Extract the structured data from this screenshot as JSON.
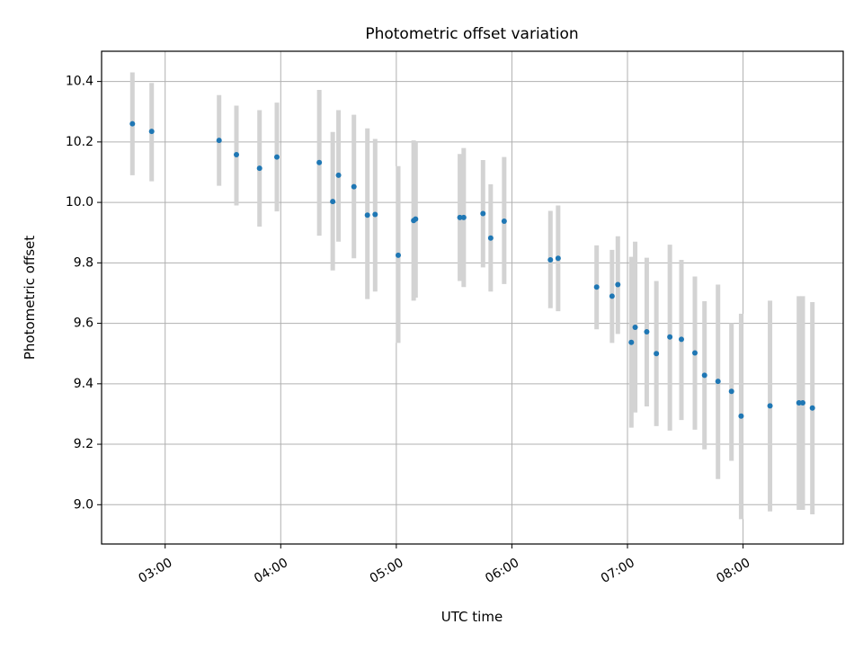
{
  "chart_data": {
    "type": "scatter",
    "title": "Photometric offset variation",
    "xlabel": "UTC time",
    "ylabel": "Photometric offset",
    "x_is_time": true,
    "x_range": [
      "02:27",
      "08:52"
    ],
    "ylim": [
      8.87,
      10.5
    ],
    "grid": true,
    "x_ticks": [
      "03:00",
      "04:00",
      "05:00",
      "06:00",
      "07:00",
      "08:00"
    ],
    "y_ticks": [
      9.0,
      9.2,
      9.4,
      9.6,
      9.8,
      10.0,
      10.2,
      10.4
    ],
    "y_tick_labels": [
      "9.0",
      "9.2",
      "9.4",
      "9.6",
      "9.8",
      "10.0",
      "10.2",
      "10.4"
    ],
    "colors": {
      "point": "#1f77b4",
      "errorbar": "#d3d3d3",
      "grid": "#b0b0b0"
    },
    "points": [
      {
        "t": "02:43",
        "y": 10.26,
        "lo": 10.09,
        "hi": 10.43
      },
      {
        "t": "02:53",
        "y": 10.235,
        "lo": 10.07,
        "hi": 10.395
      },
      {
        "t": "03:28",
        "y": 10.205,
        "lo": 10.055,
        "hi": 10.355
      },
      {
        "t": "03:37",
        "y": 10.158,
        "lo": 9.99,
        "hi": 10.32
      },
      {
        "t": "03:49",
        "y": 10.113,
        "lo": 9.92,
        "hi": 10.305
      },
      {
        "t": "03:58",
        "y": 10.15,
        "lo": 9.97,
        "hi": 10.33
      },
      {
        "t": "04:20",
        "y": 10.132,
        "lo": 9.89,
        "hi": 10.372
      },
      {
        "t": "04:27",
        "y": 10.003,
        "lo": 9.775,
        "hi": 10.233
      },
      {
        "t": "04:30",
        "y": 10.09,
        "lo": 9.87,
        "hi": 10.305
      },
      {
        "t": "04:38",
        "y": 10.052,
        "lo": 9.815,
        "hi": 10.29
      },
      {
        "t": "04:45",
        "y": 9.958,
        "lo": 9.68,
        "hi": 10.245
      },
      {
        "t": "04:49",
        "y": 9.96,
        "lo": 9.705,
        "hi": 10.21
      },
      {
        "t": "05:01",
        "y": 9.825,
        "lo": 9.535,
        "hi": 10.12
      },
      {
        "t": "05:09",
        "y": 9.94,
        "lo": 9.675,
        "hi": 10.205
      },
      {
        "t": "05:10",
        "y": 9.945,
        "lo": 9.685,
        "hi": 10.2
      },
      {
        "t": "05:33",
        "y": 9.95,
        "lo": 9.74,
        "hi": 10.16
      },
      {
        "t": "05:35",
        "y": 9.95,
        "lo": 9.72,
        "hi": 10.18
      },
      {
        "t": "05:45",
        "y": 9.963,
        "lo": 9.785,
        "hi": 10.14
      },
      {
        "t": "05:49",
        "y": 9.882,
        "lo": 9.705,
        "hi": 10.06
      },
      {
        "t": "05:56",
        "y": 9.938,
        "lo": 9.73,
        "hi": 10.15
      },
      {
        "t": "06:20",
        "y": 9.81,
        "lo": 9.65,
        "hi": 9.972
      },
      {
        "t": "06:24",
        "y": 9.815,
        "lo": 9.64,
        "hi": 9.99
      },
      {
        "t": "06:44",
        "y": 9.72,
        "lo": 9.58,
        "hi": 9.858
      },
      {
        "t": "06:52",
        "y": 9.69,
        "lo": 9.535,
        "hi": 9.843
      },
      {
        "t": "06:55",
        "y": 9.728,
        "lo": 9.565,
        "hi": 9.888
      },
      {
        "t": "07:02",
        "y": 9.537,
        "lo": 9.255,
        "hi": 9.82
      },
      {
        "t": "07:04",
        "y": 9.587,
        "lo": 9.305,
        "hi": 9.87
      },
      {
        "t": "07:10",
        "y": 9.572,
        "lo": 9.325,
        "hi": 9.817
      },
      {
        "t": "07:15",
        "y": 9.5,
        "lo": 9.26,
        "hi": 9.74
      },
      {
        "t": "07:22",
        "y": 9.555,
        "lo": 9.245,
        "hi": 9.86
      },
      {
        "t": "07:28",
        "y": 9.547,
        "lo": 9.28,
        "hi": 9.81
      },
      {
        "t": "07:35",
        "y": 9.502,
        "lo": 9.248,
        "hi": 9.755
      },
      {
        "t": "07:40",
        "y": 9.428,
        "lo": 9.183,
        "hi": 9.673
      },
      {
        "t": "07:47",
        "y": 9.408,
        "lo": 9.085,
        "hi": 9.728
      },
      {
        "t": "07:54",
        "y": 9.375,
        "lo": 9.145,
        "hi": 9.6
      },
      {
        "t": "07:59",
        "y": 9.293,
        "lo": 8.952,
        "hi": 9.632
      },
      {
        "t": "08:14",
        "y": 9.327,
        "lo": 8.978,
        "hi": 9.675
      },
      {
        "t": "08:29",
        "y": 9.337,
        "lo": 8.983,
        "hi": 9.69
      },
      {
        "t": "08:31",
        "y": 9.337,
        "lo": 8.983,
        "hi": 9.69
      },
      {
        "t": "08:36",
        "y": 9.32,
        "lo": 8.968,
        "hi": 9.67
      }
    ]
  }
}
